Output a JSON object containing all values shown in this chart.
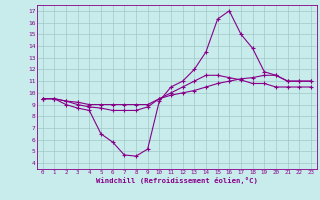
{
  "xlabel": "Windchill (Refroidissement éolien,°C)",
  "xlim": [
    -0.5,
    23.5
  ],
  "ylim": [
    3.5,
    17.5
  ],
  "xticks": [
    0,
    1,
    2,
    3,
    4,
    5,
    6,
    7,
    8,
    9,
    10,
    11,
    12,
    13,
    14,
    15,
    16,
    17,
    18,
    19,
    20,
    21,
    22,
    23
  ],
  "yticks": [
    4,
    5,
    6,
    7,
    8,
    9,
    10,
    11,
    12,
    13,
    14,
    15,
    16,
    17
  ],
  "bg_color": "#c8ecec",
  "line_color": "#880088",
  "grid_color": "#a0c8c8",
  "line1_y": [
    9.5,
    9.5,
    9.0,
    8.7,
    8.5,
    6.5,
    5.8,
    4.7,
    4.6,
    5.2,
    9.3,
    10.5,
    11.0,
    12.0,
    13.5,
    16.3,
    17.0,
    15.0,
    13.8,
    11.8,
    11.5,
    11.0,
    11.0,
    11.0
  ],
  "line2_y": [
    9.5,
    9.5,
    9.3,
    9.0,
    8.8,
    8.7,
    8.5,
    8.5,
    8.5,
    8.8,
    9.5,
    10.0,
    10.5,
    11.0,
    11.5,
    11.5,
    11.3,
    11.1,
    10.8,
    10.8,
    10.5,
    10.5,
    10.5,
    10.5
  ],
  "line3_y": [
    9.5,
    9.5,
    9.3,
    9.2,
    9.0,
    9.0,
    9.0,
    9.0,
    9.0,
    9.0,
    9.5,
    9.8,
    10.0,
    10.2,
    10.5,
    10.8,
    11.0,
    11.2,
    11.3,
    11.5,
    11.5,
    11.0,
    11.0,
    11.0
  ]
}
